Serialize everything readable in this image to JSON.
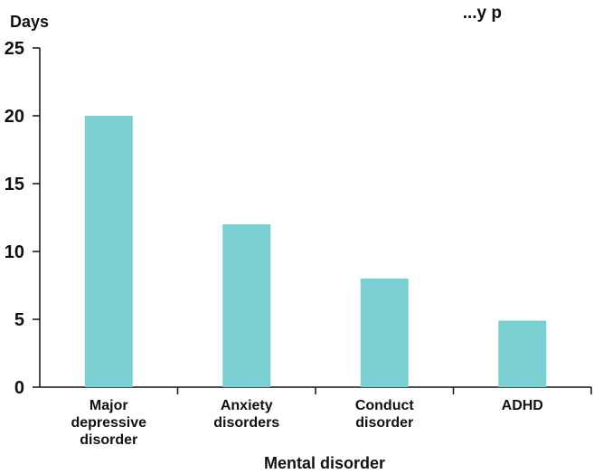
{
  "chart_data": {
    "type": "bar",
    "title": "...y p",
    "categories": [
      [
        "Major",
        "depressive",
        "disorder"
      ],
      [
        "Anxiety",
        "disorders"
      ],
      [
        "Conduct",
        "disorder"
      ],
      [
        "ADHD"
      ]
    ],
    "values": [
      20,
      12,
      8,
      4.9
    ],
    "ylabel": "Days",
    "xlabel": "Mental disorder",
    "ylim": [
      0,
      25
    ],
    "yticks": [
      0,
      5,
      10,
      15,
      20,
      25
    ],
    "grid": false,
    "bar_color": "#7ACFD1"
  }
}
